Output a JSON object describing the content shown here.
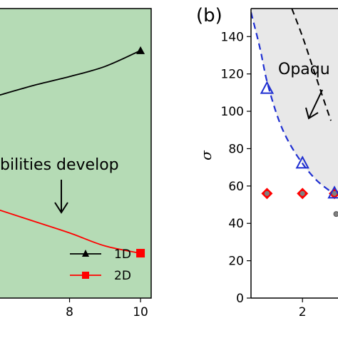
{
  "chart_data": [
    {
      "panel": "left",
      "type": "line",
      "background_color": "#b5dbb5",
      "xlim": [
        6.0,
        10.3
      ],
      "ylim": [
        0,
        1
      ],
      "x_ticks": [
        8,
        10
      ],
      "annotation": "bilities develop",
      "series": [
        {
          "name": "1D",
          "color": "#000000",
          "marker": "triangle",
          "x": [
            6.0,
            7.0,
            8.0,
            9.0,
            10.0
          ],
          "y": [
            0.7,
            0.735,
            0.765,
            0.8,
            0.855
          ],
          "marker_points": [
            {
              "x": 10.0,
              "y": 0.855
            }
          ]
        },
        {
          "name": "2D",
          "color": "#ff0000",
          "marker": "square",
          "x": [
            6.0,
            7.0,
            8.0,
            9.0,
            10.0
          ],
          "y": [
            0.305,
            0.265,
            0.225,
            0.18,
            0.155
          ],
          "marker_points": [
            {
              "x": 10.0,
              "y": 0.155
            }
          ]
        }
      ]
    },
    {
      "panel": "right",
      "type": "scatter",
      "panel_label": "(b)",
      "ylabel": "σ",
      "xlim": [
        0.55,
        3.0
      ],
      "ylim": [
        0,
        155
      ],
      "x_ticks": [
        2
      ],
      "y_ticks": [
        0,
        20,
        40,
        60,
        80,
        100,
        120,
        140
      ],
      "region_label": "Opaqu",
      "region_color": "#e8e8e8",
      "boundary_blue": {
        "color": "#1f2fd1",
        "x": [
          0.55,
          0.8,
          1.0,
          1.3,
          1.6,
          2.0,
          2.4,
          2.8,
          3.0
        ],
        "y": [
          153,
          134,
          116,
          97,
          84,
          72,
          63,
          57,
          55
        ]
      },
      "boundary_black": {
        "color": "#000000",
        "x": [
          1.7,
          2.0,
          2.3,
          2.6,
          2.8
        ],
        "y": [
          155,
          140,
          123,
          106,
          95
        ]
      },
      "triangles": {
        "color": "#1f2fd1",
        "x": [
          1.0,
          2.0,
          2.9
        ],
        "y": [
          112,
          72,
          56
        ]
      },
      "diamonds": {
        "color": "#ff0000",
        "x": [
          1.0,
          2.0,
          2.9
        ],
        "y": [
          56,
          56,
          56
        ]
      },
      "grey_points": {
        "color": "#808080",
        "x": [
          2.95
        ],
        "y": [
          45
        ]
      }
    }
  ]
}
